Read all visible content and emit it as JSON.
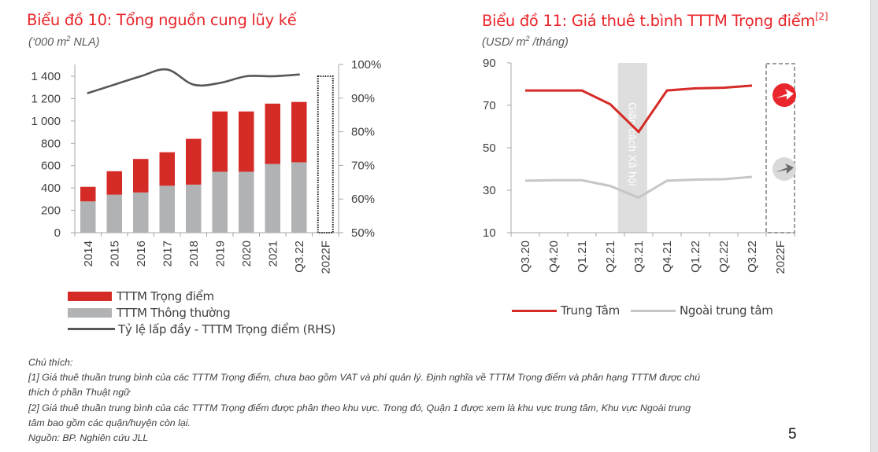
{
  "left_chart": {
    "title": "Biểu đồ 10: Tổng nguồn cung lũy kế",
    "subtitle_pre": "(‘000 m",
    "subtitle_sup": "2",
    "subtitle_post": " NLA)",
    "legend": {
      "key": "TTTM Trọng điểm",
      "normal": "TTTM Thông thường",
      "occupancy": "Tỷ lệ lấp đầy - TTTM Trọng điểm (RHS)"
    }
  },
  "right_chart": {
    "title": "Biểu đồ 11: Giá thuê t.bình TTTM Trọng điểm",
    "title_sup": "[2]",
    "subtitle_pre": "(USD/ m",
    "subtitle_sup": "2",
    "subtitle_post": " /tháng)",
    "shade_label": "Giãn cách Xã hội",
    "legend": {
      "center": "Trung Tâm",
      "outside": "Ngoài trung tâm"
    }
  },
  "colors": {
    "accent_red": "#e8262b",
    "bar_red": "#d52b27",
    "bar_gray": "#b1b2b4",
    "line_dark": "#58585a",
    "line_gray": "#c6c6c6",
    "shade": "#dedede"
  },
  "chart_data": [
    {
      "type": "bar",
      "stacked": true,
      "title": "Biểu đồ 10: Tổng nguồn cung lũy kế",
      "ylabel": "'000 m2 NLA",
      "categories": [
        "2014",
        "2015",
        "2016",
        "2017",
        "2018",
        "2019",
        "2020",
        "2021",
        "Q3.22",
        "2022F"
      ],
      "series": [
        {
          "name": "TTTM Thông thường",
          "values": [
            280,
            340,
            360,
            420,
            430,
            545,
            545,
            615,
            630,
            null
          ]
        },
        {
          "name": "TTTM Trọng điểm",
          "values": [
            130,
            210,
            300,
            300,
            410,
            540,
            540,
            540,
            540,
            null
          ]
        },
        {
          "name": "Tỷ lệ lấp đầy - TTTM Trọng điểm (RHS)",
          "axis": "right",
          "type": "line",
          "values": [
            91.5,
            94,
            96.5,
            98.5,
            94,
            94.5,
            96.5,
            96.5,
            97,
            null
          ]
        }
      ],
      "forecast_placeholder": {
        "category": "2022F",
        "style": "dotted-outline",
        "top_value": 1400
      },
      "ylim": [
        0,
        1400
      ],
      "yticks": [
        "0",
        "200",
        "400",
        "600",
        "800",
        "1 000",
        "1 200",
        "1 400"
      ],
      "y2lim": [
        50,
        100
      ],
      "y2ticks": [
        "50%",
        "60%",
        "70%",
        "80%",
        "90%",
        "100%"
      ],
      "grid": false,
      "legend_position": "bottom"
    },
    {
      "type": "line",
      "title": "Biểu đồ 11: Giá thuê t.bình TTTM Trọng điểm[2]",
      "ylabel": "USD/ m2 /tháng",
      "categories": [
        "Q3.20",
        "Q4.20",
        "Q1.21",
        "Q2.21",
        "Q3.21",
        "Q4.21",
        "Q1.22",
        "Q2.22",
        "Q3.22",
        "2022F"
      ],
      "series": [
        {
          "name": "Trung Tâm",
          "values": [
            77,
            77,
            77,
            70.5,
            57.5,
            77,
            78,
            78.3,
            79.3,
            null
          ],
          "forecast": "up-arrow"
        },
        {
          "name": "Ngoài trung tâm",
          "values": [
            34.5,
            34.7,
            34.7,
            32,
            26.5,
            34.5,
            35,
            35.2,
            36.3,
            null
          ],
          "forecast": "up-arrow"
        }
      ],
      "shaded_region": {
        "label": "Giãn cách Xã hội",
        "from": "Q2.21",
        "to": "Q3.21"
      },
      "ylim": [
        10,
        90
      ],
      "yticks": [
        "10",
        "30",
        "50",
        "70",
        "90"
      ],
      "grid": false,
      "legend_position": "bottom"
    }
  ],
  "notes": {
    "heading": "Chú thích:",
    "line1": "[1] Giá thuê thuần trung bình của các TTTM Trọng điểm, chưa bao gồm VAT và phí quản lý. Định nghĩa về TTTM Trọng điểm và phân hạng TTTM được chú",
    "line1b": "thích ở phần Thuật ngữ",
    "line2": "[2] Giá thuê thuần trung bình của các TTTM Trọng điểm được phân theo khu vực. Trong đó, Quận 1 được xem là khu vực trung tâm, Khu vực Ngoài trung",
    "line2b": "tâm bao gồm các quận/huyện còn lại.",
    "source": "Nguồn: BP. Nghiên cứu JLL"
  },
  "page_number": "5"
}
